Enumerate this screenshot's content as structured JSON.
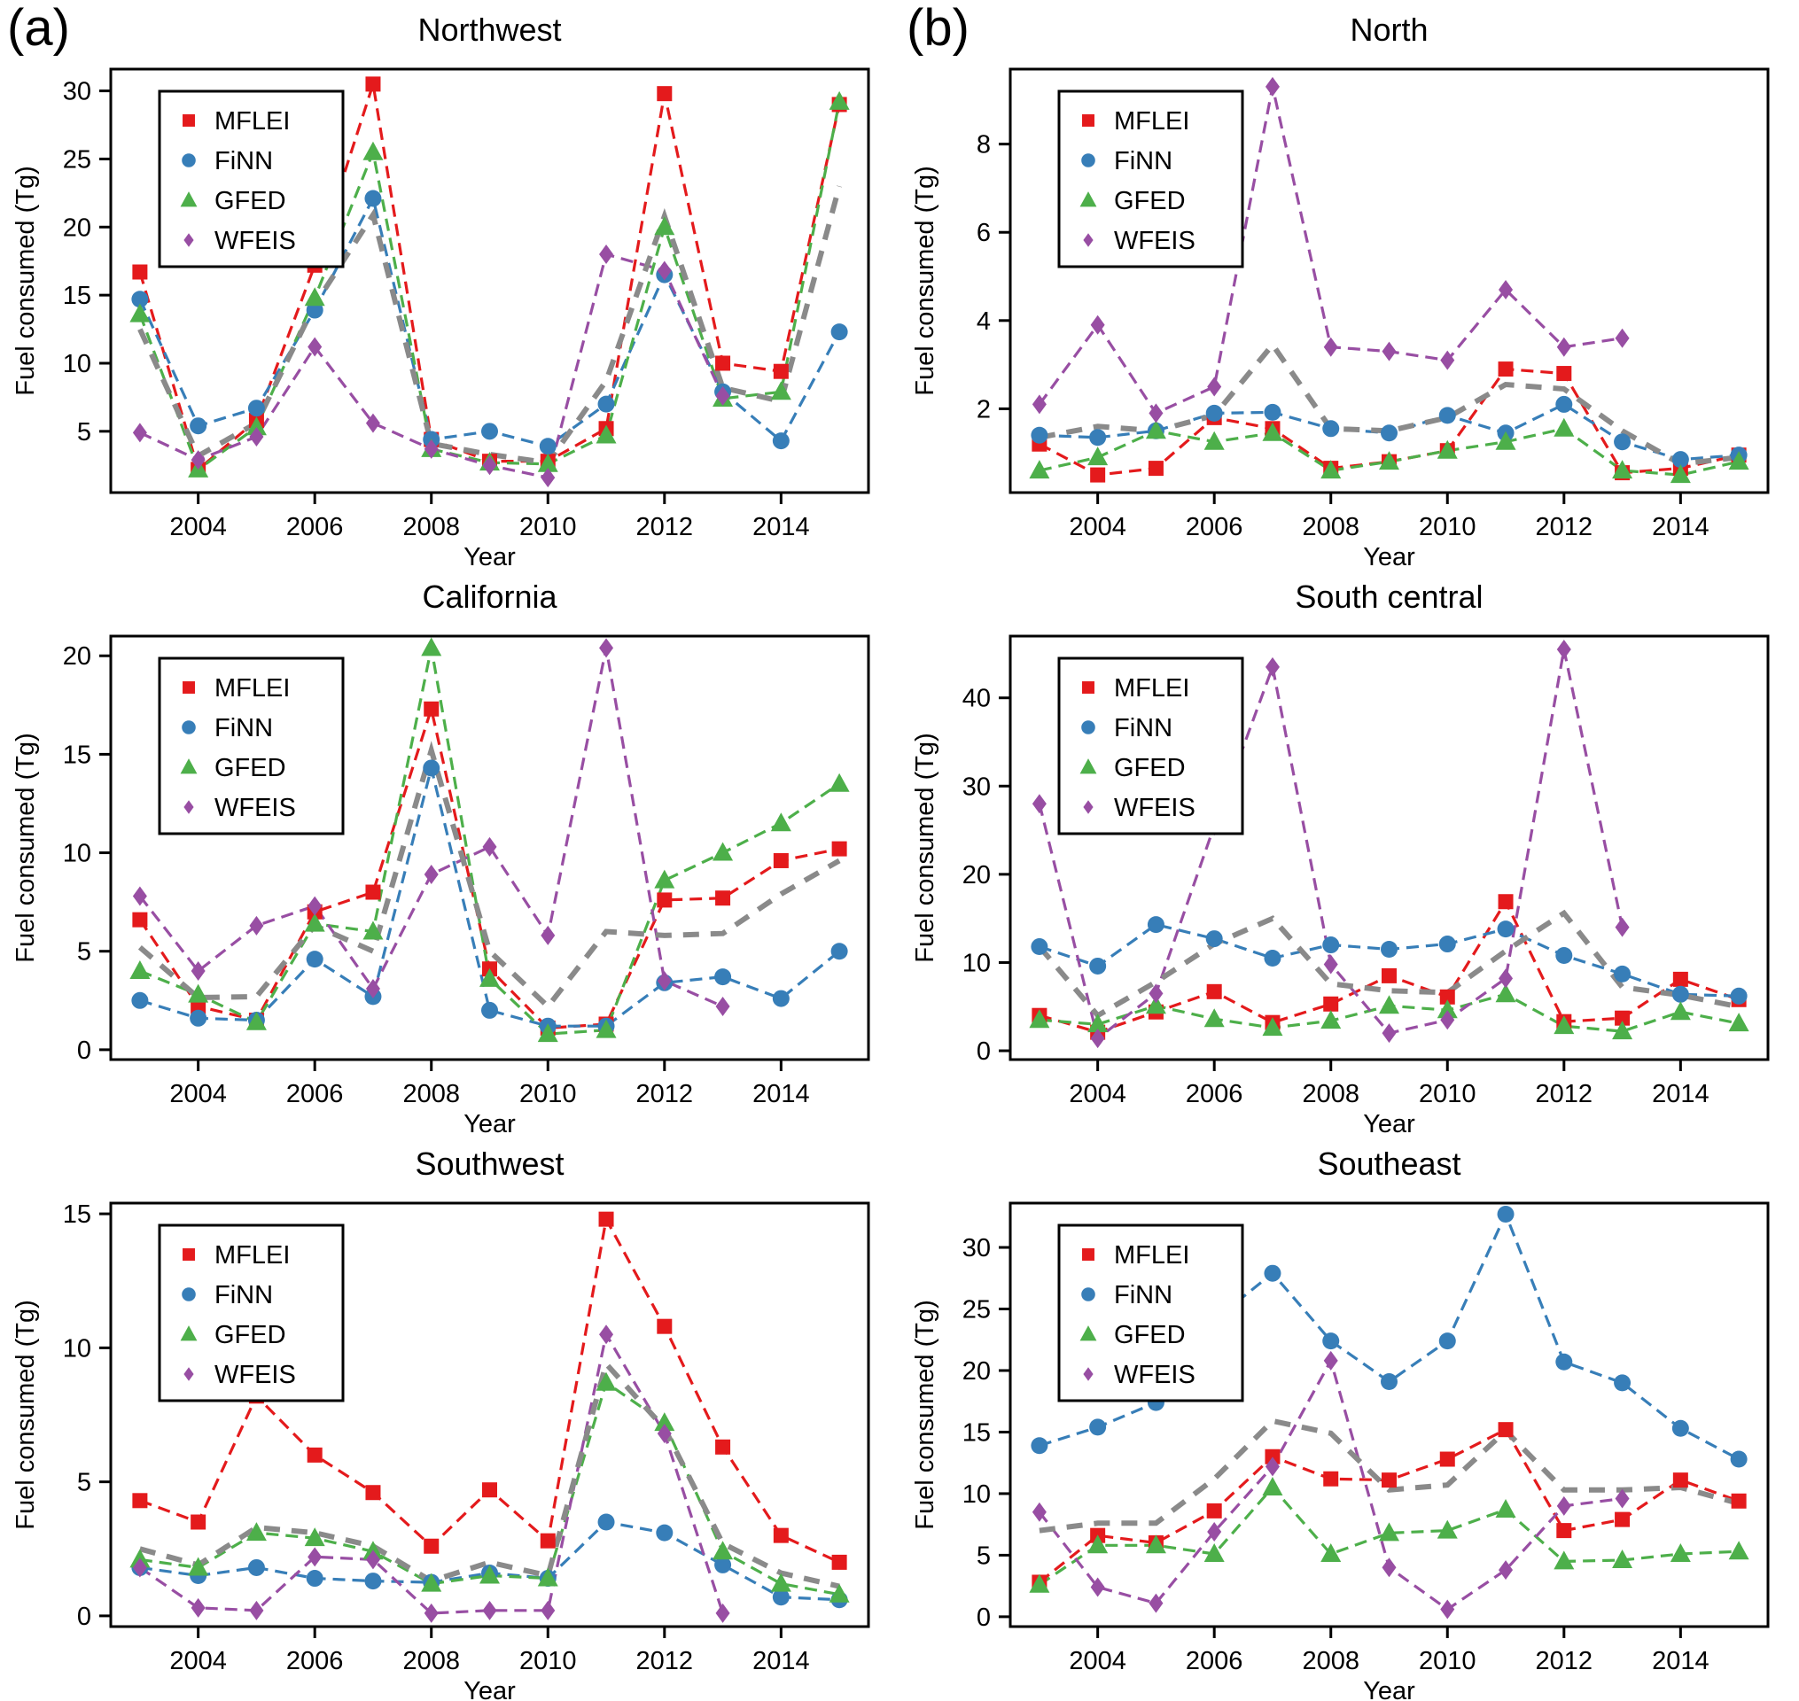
{
  "figure": {
    "panel_a_label": "(a)",
    "panel_b_label": "(b)",
    "background_color": "#ffffff",
    "axis_color": "#000000"
  },
  "legend": {
    "entries": [
      {
        "label": "MFLEI",
        "marker": "square",
        "color": "#e41a1c"
      },
      {
        "label": "FiNN",
        "marker": "circle",
        "color": "#377eb8"
      },
      {
        "label": "GFED",
        "marker": "triangle",
        "color": "#4daf4a"
      },
      {
        "label": "WFEIS",
        "marker": "diamond",
        "color": "#984ea3"
      }
    ],
    "mean_line": {
      "name": "ensemble-mean",
      "color": "#8a8a8a",
      "style": "dashed"
    }
  },
  "chart_data": [
    {
      "type": "line",
      "title": "Northwest",
      "xlabel": "Year",
      "ylabel": "Fuel consumed (Tg)",
      "x": [
        2003,
        2004,
        2005,
        2006,
        2007,
        2008,
        2009,
        2010,
        2011,
        2012,
        2013,
        2014,
        2015
      ],
      "xticks": [
        2004,
        2006,
        2008,
        2010,
        2012,
        2014
      ],
      "xlim": [
        2002.5,
        2015.5
      ],
      "ylim": [
        0.5,
        31.6
      ],
      "yticks": [
        5,
        10,
        15,
        20,
        25,
        30
      ],
      "grid": false,
      "legend_position": "upper-left",
      "series": [
        {
          "name": "MFLEI",
          "values": [
            16.7,
            2.2,
            5.8,
            17.2,
            30.5,
            4.4,
            2.8,
            2.8,
            5.2,
            29.8,
            10.0,
            9.4,
            29.0
          ]
        },
        {
          "name": "FiNN",
          "values": [
            14.7,
            5.4,
            6.7,
            13.9,
            22.1,
            4.4,
            5.0,
            3.9,
            7.0,
            16.5,
            7.9,
            4.3,
            12.3
          ]
        },
        {
          "name": "GFED",
          "values": [
            13.6,
            2.2,
            5.3,
            14.8,
            25.5,
            3.7,
            2.7,
            2.6,
            4.7,
            20.0,
            7.4,
            7.9,
            29.2
          ]
        },
        {
          "name": "WFEIS",
          "values": [
            4.9,
            2.9,
            4.6,
            11.2,
            5.6,
            3.7,
            2.5,
            1.6,
            18.0,
            16.8,
            7.6,
            null,
            null
          ]
        },
        {
          "name": "Ensemble mean",
          "dashed": true,
          "color": "#8a8a8a",
          "values": [
            12.5,
            3.2,
            5.6,
            14.3,
            20.9,
            4.1,
            3.3,
            2.7,
            8.7,
            20.8,
            8.2,
            7.2,
            23.0
          ]
        }
      ]
    },
    {
      "type": "line",
      "title": "North",
      "xlabel": "Year",
      "ylabel": "Fuel consumed (Tg)",
      "x": [
        2003,
        2004,
        2005,
        2006,
        2007,
        2008,
        2009,
        2010,
        2011,
        2012,
        2013,
        2014,
        2015
      ],
      "xticks": [
        2004,
        2006,
        2008,
        2010,
        2012,
        2014
      ],
      "xlim": [
        2002.5,
        2015.5
      ],
      "ylim": [
        0.1,
        9.7
      ],
      "yticks": [
        2,
        4,
        6,
        8
      ],
      "grid": false,
      "legend_position": "upper-left",
      "series": [
        {
          "name": "MFLEI",
          "values": [
            1.2,
            0.5,
            0.65,
            1.8,
            1.55,
            0.65,
            0.8,
            1.05,
            2.9,
            2.8,
            0.55,
            0.65,
            0.95
          ]
        },
        {
          "name": "FiNN",
          "values": [
            1.4,
            1.35,
            1.5,
            1.9,
            1.92,
            1.55,
            1.45,
            1.85,
            1.45,
            2.1,
            1.25,
            0.85,
            0.95
          ]
        },
        {
          "name": "GFED",
          "values": [
            0.6,
            0.9,
            1.5,
            1.25,
            1.45,
            0.6,
            0.8,
            1.05,
            1.25,
            1.55,
            0.6,
            0.5,
            0.8
          ]
        },
        {
          "name": "WFEIS",
          "values": [
            2.1,
            3.9,
            1.9,
            2.5,
            9.3,
            3.4,
            3.3,
            3.1,
            4.7,
            3.4,
            3.6,
            null,
            null
          ]
        },
        {
          "name": "Ensemble mean",
          "dashed": true,
          "color": "#8a8a8a",
          "values": [
            1.35,
            1.6,
            1.5,
            1.85,
            3.45,
            1.55,
            1.5,
            1.8,
            2.55,
            2.45,
            1.5,
            0.75,
            0.9
          ]
        }
      ]
    },
    {
      "type": "line",
      "title": "California",
      "xlabel": "Year",
      "ylabel": "Fuel consumed (Tg)",
      "x": [
        2003,
        2004,
        2005,
        2006,
        2007,
        2008,
        2009,
        2010,
        2011,
        2012,
        2013,
        2014,
        2015
      ],
      "xticks": [
        2004,
        2006,
        2008,
        2010,
        2012,
        2014
      ],
      "xlim": [
        2002.5,
        2015.5
      ],
      "ylim": [
        -0.5,
        21.0
      ],
      "yticks": [
        0,
        5,
        10,
        15,
        20
      ],
      "grid": false,
      "legend_position": "upper-left",
      "series": [
        {
          "name": "MFLEI",
          "values": [
            6.6,
            2.2,
            1.5,
            7.0,
            8.0,
            17.3,
            4.1,
            1.1,
            1.3,
            7.6,
            7.7,
            9.6,
            10.2
          ]
        },
        {
          "name": "FiNN",
          "values": [
            2.5,
            1.6,
            1.5,
            4.6,
            2.7,
            14.3,
            2.0,
            1.2,
            1.2,
            3.4,
            3.7,
            2.6,
            5.0
          ]
        },
        {
          "name": "GFED",
          "values": [
            4.0,
            2.8,
            1.4,
            6.4,
            6.0,
            20.4,
            3.6,
            0.8,
            1.0,
            8.6,
            10.0,
            11.5,
            13.5
          ]
        },
        {
          "name": "WFEIS",
          "values": [
            7.8,
            4.0,
            6.3,
            7.3,
            3.1,
            8.9,
            10.3,
            5.8,
            20.4,
            3.5,
            2.2,
            null,
            null
          ]
        },
        {
          "name": "Ensemble mean",
          "dashed": true,
          "color": "#8a8a8a",
          "values": [
            5.2,
            2.65,
            2.7,
            6.3,
            5.0,
            15.2,
            5.0,
            2.2,
            6.0,
            5.8,
            5.9,
            7.9,
            9.6
          ]
        }
      ]
    },
    {
      "type": "line",
      "title": "South central",
      "xlabel": "Year",
      "ylabel": "Fuel consumed (Tg)",
      "x": [
        2003,
        2004,
        2005,
        2006,
        2007,
        2008,
        2009,
        2010,
        2011,
        2012,
        2013,
        2014,
        2015
      ],
      "xticks": [
        2004,
        2006,
        2008,
        2010,
        2012,
        2014
      ],
      "xlim": [
        2002.5,
        2015.5
      ],
      "ylim": [
        -1.0,
        47.0
      ],
      "yticks": [
        0,
        10,
        20,
        30,
        40
      ],
      "grid": false,
      "legend_position": "upper-left",
      "series": [
        {
          "name": "MFLEI",
          "values": [
            4.0,
            2.1,
            4.4,
            6.7,
            3.2,
            5.3,
            8.5,
            6.1,
            16.9,
            3.3,
            3.7,
            8.1,
            5.8
          ]
        },
        {
          "name": "FiNN",
          "values": [
            11.8,
            9.6,
            14.3,
            12.7,
            10.5,
            12.0,
            11.5,
            12.1,
            13.8,
            10.8,
            8.7,
            6.4,
            6.2
          ]
        },
        {
          "name": "GFED",
          "values": [
            3.5,
            3.0,
            5.1,
            3.6,
            2.6,
            3.4,
            5.1,
            4.6,
            6.4,
            2.8,
            2.2,
            4.4,
            3.1
          ]
        },
        {
          "name": "WFEIS",
          "values": [
            28.0,
            1.4,
            6.5,
            25.5,
            43.5,
            9.8,
            2.0,
            3.5,
            8.2,
            45.5,
            14.0,
            null,
            null
          ]
        },
        {
          "name": "Ensemble mean",
          "dashed": true,
          "color": "#8a8a8a",
          "values": [
            11.8,
            4.0,
            7.8,
            12.1,
            15.0,
            7.6,
            6.8,
            6.6,
            11.3,
            15.6,
            7.2,
            6.3,
            5.0
          ]
        }
      ]
    },
    {
      "type": "line",
      "title": "Southwest",
      "xlabel": "Year",
      "ylabel": "Fuel consumed (Tg)",
      "x": [
        2003,
        2004,
        2005,
        2006,
        2007,
        2008,
        2009,
        2010,
        2011,
        2012,
        2013,
        2014,
        2015
      ],
      "xticks": [
        2004,
        2006,
        2008,
        2010,
        2012,
        2014
      ],
      "xlim": [
        2002.5,
        2015.5
      ],
      "ylim": [
        -0.4,
        15.4
      ],
      "yticks": [
        0,
        5,
        10,
        15
      ],
      "grid": false,
      "legend_position": "upper-left",
      "series": [
        {
          "name": "MFLEI",
          "values": [
            4.3,
            3.5,
            8.2,
            6.0,
            4.6,
            2.6,
            4.7,
            2.8,
            14.8,
            10.8,
            6.3,
            3.0,
            2.0
          ]
        },
        {
          "name": "FiNN",
          "values": [
            1.8,
            1.5,
            1.8,
            1.4,
            1.3,
            1.25,
            1.6,
            1.4,
            3.5,
            3.1,
            1.9,
            0.7,
            0.6
          ]
        },
        {
          "name": "GFED",
          "values": [
            2.1,
            1.8,
            3.1,
            2.9,
            2.4,
            1.2,
            1.5,
            1.4,
            8.7,
            7.2,
            2.4,
            1.2,
            0.8
          ]
        },
        {
          "name": "WFEIS",
          "values": [
            1.8,
            0.3,
            0.2,
            2.2,
            2.1,
            0.1,
            0.2,
            0.2,
            10.5,
            6.8,
            0.1,
            null,
            null
          ]
        },
        {
          "name": "Ensemble mean",
          "dashed": true,
          "color": "#8a8a8a",
          "values": [
            2.5,
            1.9,
            3.3,
            3.1,
            2.6,
            1.3,
            2.0,
            1.5,
            9.4,
            7.0,
            2.7,
            1.6,
            1.1
          ]
        }
      ]
    },
    {
      "type": "line",
      "title": "Southeast",
      "xlabel": "Year",
      "ylabel": "Fuel consumed (Tg)",
      "x": [
        2003,
        2004,
        2005,
        2006,
        2007,
        2008,
        2009,
        2010,
        2011,
        2012,
        2013,
        2014,
        2015
      ],
      "xticks": [
        2004,
        2006,
        2008,
        2010,
        2012,
        2014
      ],
      "xlim": [
        2002.5,
        2015.5
      ],
      "ylim": [
        -0.8,
        33.6
      ],
      "yticks": [
        0,
        5,
        10,
        15,
        20,
        25,
        30
      ],
      "grid": false,
      "legend_position": "upper-left",
      "series": [
        {
          "name": "MFLEI",
          "values": [
            2.8,
            6.6,
            6.0,
            8.6,
            13.0,
            11.2,
            11.1,
            12.8,
            15.2,
            7.0,
            7.9,
            11.1,
            9.4
          ]
        },
        {
          "name": "FiNN",
          "values": [
            13.9,
            15.4,
            17.4,
            24.1,
            27.9,
            22.4,
            19.1,
            22.4,
            32.7,
            20.7,
            19.0,
            15.3,
            12.8
          ]
        },
        {
          "name": "GFED",
          "values": [
            2.6,
            5.8,
            5.8,
            5.1,
            10.5,
            5.1,
            6.8,
            7.0,
            8.7,
            4.5,
            4.6,
            5.1,
            5.3
          ]
        },
        {
          "name": "WFEIS",
          "values": [
            8.5,
            2.4,
            1.1,
            6.9,
            12.2,
            20.8,
            4.0,
            0.6,
            3.8,
            9.0,
            9.6,
            null,
            null
          ]
        },
        {
          "name": "Ensemble mean",
          "dashed": true,
          "color": "#8a8a8a",
          "values": [
            7.0,
            7.6,
            7.6,
            11.2,
            15.9,
            14.9,
            10.3,
            10.7,
            15.1,
            10.3,
            10.3,
            10.5,
            9.2
          ]
        }
      ]
    }
  ]
}
